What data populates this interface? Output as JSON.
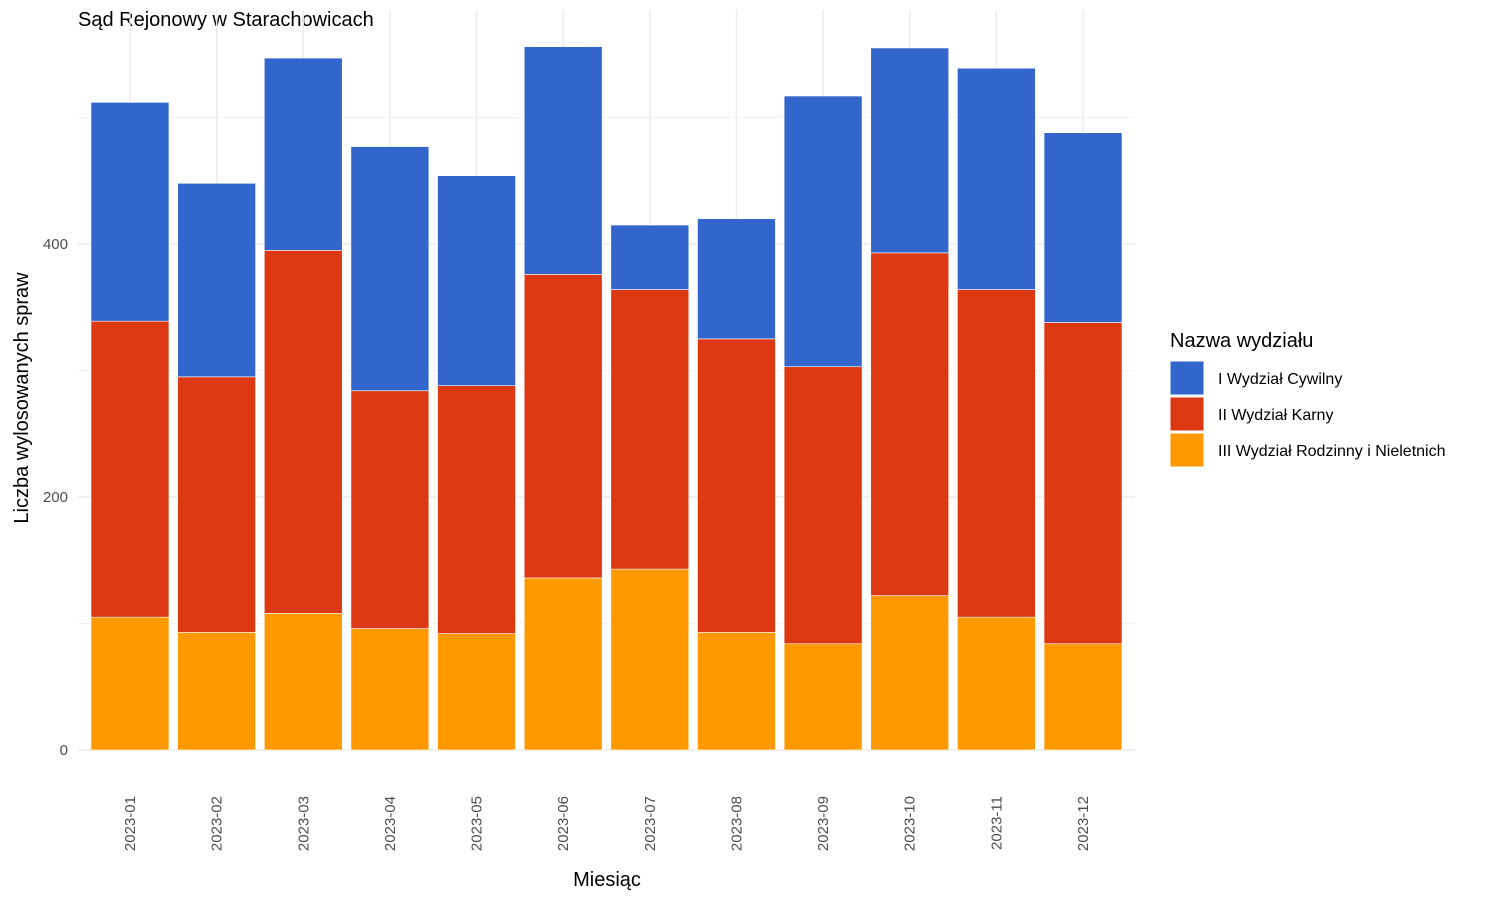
{
  "chart_data": {
    "type": "bar",
    "stacked": true,
    "title": "Sąd Rejonowy w Starachowicach",
    "xlabel": "Miesiąc",
    "ylabel": "Liczba wylosowanych spraw",
    "ylim": [
      0,
      585
    ],
    "yticks": [
      0,
      200,
      400
    ],
    "grid": true,
    "legend": {
      "title": "Nazwa wydziału",
      "position": "right"
    },
    "categories": [
      "2023-01",
      "2023-02",
      "2023-03",
      "2023-04",
      "2023-05",
      "2023-06",
      "2023-07",
      "2023-08",
      "2023-09",
      "2023-10",
      "2023-11",
      "2023-12"
    ],
    "series": [
      {
        "name": "III Wydział Rodzinny i Nieletnich",
        "color": "#FF9900",
        "values": [
          105,
          93,
          108,
          96,
          92,
          136,
          143,
          93,
          84,
          122,
          105,
          84
        ]
      },
      {
        "name": "II Wydział Karny",
        "color": "#DC3912",
        "values": [
          234,
          202,
          287,
          188,
          196,
          240,
          221,
          232,
          219,
          271,
          259,
          254
        ]
      },
      {
        "name": "I Wydział Cywilny",
        "color": "#3366CC",
        "values": [
          173,
          153,
          152,
          193,
          166,
          180,
          51,
          95,
          214,
          162,
          175,
          150
        ]
      }
    ]
  }
}
